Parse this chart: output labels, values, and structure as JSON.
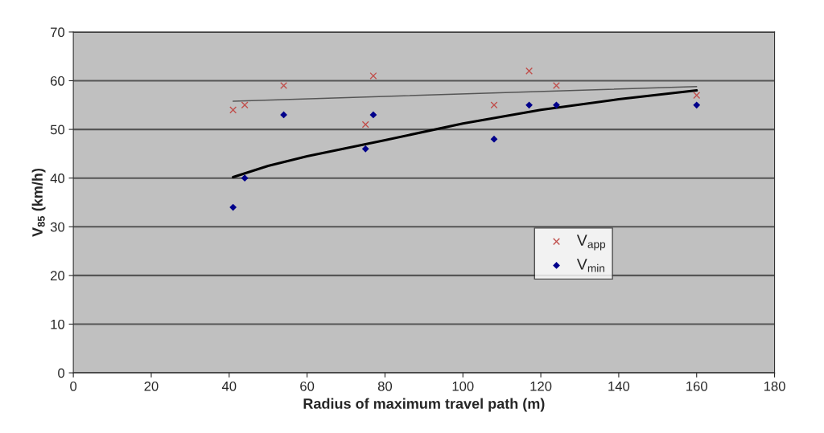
{
  "chart_data": {
    "type": "scatter",
    "xlabel": "Radius of maximum travel path (m)",
    "ylabel": "V$_{85}$ (km/h)",
    "xlim": [
      0,
      180
    ],
    "xticks": [
      0,
      20,
      40,
      60,
      80,
      100,
      120,
      140,
      160,
      180
    ],
    "ylim": [
      0,
      70
    ],
    "yticks": [
      0,
      10,
      20,
      30,
      40,
      50,
      60,
      70
    ],
    "grid": "y",
    "legend": "center right",
    "series": [
      {
        "name": "V$_{app}$",
        "marker": "cross",
        "color": "#c0504d",
        "x": [
          41,
          44,
          54,
          75,
          77,
          108,
          117,
          124,
          160
        ],
        "values": [
          54,
          55,
          59,
          51,
          61,
          55,
          62,
          59,
          57
        ]
      },
      {
        "name": "V$_{min}$",
        "marker": "diamond",
        "color": "#00008b",
        "x": [
          41,
          44,
          54,
          75,
          77,
          108,
          117,
          124,
          160
        ],
        "values": [
          34,
          40,
          53,
          46,
          53,
          48,
          55,
          55,
          55
        ]
      },
      {
        "type": "line",
        "color": "#555555",
        "x": [
          41,
          160
        ],
        "values": [
          55.8,
          58.8
        ]
      },
      {
        "type": "line",
        "color": "#000000",
        "x": [
          41,
          50,
          60,
          80,
          100,
          120,
          140,
          160
        ],
        "values": [
          40.2,
          42.5,
          44.5,
          47.8,
          51.2,
          54,
          56.2,
          58
        ]
      }
    ]
  }
}
